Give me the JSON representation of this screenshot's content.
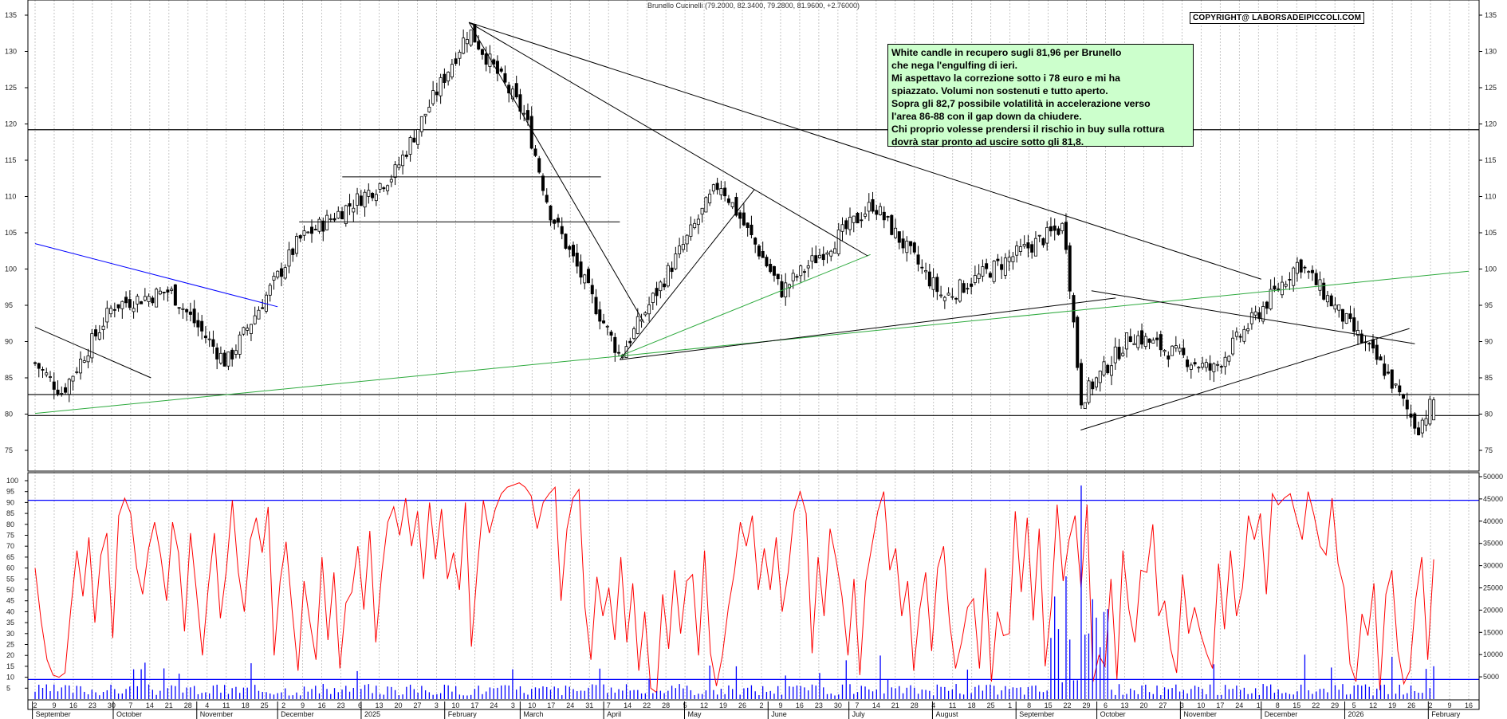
{
  "header": {
    "title": "Brunello Cucinelli (79.2000, 82.3400, 79.2800, 81.9600, +2.76000)"
  },
  "copyright": "COPYRIGHT@ LABORSADEIPICCOLI.COM",
  "comment": {
    "lines": [
      "White candle in recupero sugli 81,96 per Brunello",
      "che nega l'engulfing di ieri.",
      "Mi aspettavo la correzione sotto i 78 euro e mi ha",
      "spiazzato. Volumi non sostenuti e tutto aperto.",
      "Sopra gli 82,7 possibile volatilità in accelerazione verso",
      "l'area 86-88 con il gap down da chiudere.",
      "Chi proprio volesse prendersi il rischio in buy sulla rottura",
      "dovrà  star pronto ad uscire sotto gli 81,8."
    ]
  },
  "colors": {
    "candle": "#000000",
    "rsi_line": "#ff0000",
    "rsi_levels": "#0000ff",
    "volume_bars": "#0000ff",
    "trendline_green": "#2eaa3e",
    "trendline_blue": "#0000ff",
    "comment_bg": "#ccffcc"
  },
  "chart_data": [
    {
      "type": "candlestick",
      "title": "Brunello Cucinelli",
      "ylim": [
        72,
        138
      ],
      "yticks": [
        75,
        80,
        85,
        90,
        95,
        100,
        105,
        110,
        115,
        120,
        125,
        130,
        135
      ],
      "horizontal_levels": [
        119.2,
        82.7,
        79.8
      ],
      "last": {
        "open": 79.2,
        "high": 82.34,
        "low": 79.28,
        "close": 81.96,
        "change": 2.76
      },
      "key_points": [
        {
          "date": "2024-09-02",
          "close": 87
        },
        {
          "date": "2024-09-12",
          "close": 83
        },
        {
          "date": "2024-10-01",
          "close": 95
        },
        {
          "date": "2024-10-22",
          "close": 97
        },
        {
          "date": "2024-11-12",
          "close": 87
        },
        {
          "date": "2024-12-09",
          "close": 104
        },
        {
          "date": "2025-01-13",
          "close": 113
        },
        {
          "date": "2025-02-10",
          "close": 133
        },
        {
          "date": "2025-03-03",
          "close": 121
        },
        {
          "date": "2025-03-12",
          "close": 108
        },
        {
          "date": "2025-04-07",
          "close": 88
        },
        {
          "date": "2025-05-14",
          "close": 112
        },
        {
          "date": "2025-06-06",
          "close": 97
        },
        {
          "date": "2025-07-10",
          "close": 109
        },
        {
          "date": "2025-08-05",
          "close": 96
        },
        {
          "date": "2025-09-19",
          "close": 106
        },
        {
          "date": "2025-09-25",
          "close": 82
        },
        {
          "date": "2025-10-14",
          "close": 91
        },
        {
          "date": "2025-11-13",
          "close": 86
        },
        {
          "date": "2025-12-15",
          "close": 101
        },
        {
          "date": "2026-01-16",
          "close": 86
        },
        {
          "date": "2026-01-28",
          "close": 78
        },
        {
          "date": "2026-02-03",
          "close": 81.96
        }
      ]
    },
    {
      "type": "line",
      "name": "RSI",
      "ylim": [
        0,
        100
      ],
      "yticks": [
        5,
        10,
        15,
        20,
        25,
        30,
        35,
        40,
        45,
        50,
        55,
        60,
        65,
        70,
        75,
        80,
        85,
        90,
        95,
        100
      ],
      "levels": [
        9,
        91
      ],
      "values": [
        60,
        36,
        18,
        11,
        10,
        12,
        42,
        68,
        47,
        74,
        35,
        66,
        76,
        28,
        84,
        92,
        85,
        60,
        48,
        69,
        81,
        66,
        45,
        81,
        67,
        31,
        76,
        49,
        20,
        52,
        76,
        37,
        59,
        91,
        58,
        40,
        73,
        83,
        67,
        88,
        20,
        54,
        72,
        41,
        13,
        54,
        35,
        18,
        65,
        27,
        58,
        14,
        44,
        49,
        70,
        41,
        77,
        26,
        58,
        81,
        88,
        75,
        92,
        70,
        86,
        55,
        90,
        64,
        87,
        55,
        67,
        50,
        90,
        24,
        60,
        91,
        76,
        87,
        94,
        97,
        98,
        99,
        97,
        93,
        78,
        90,
        94,
        97,
        45,
        78,
        92,
        96,
        42,
        18,
        56,
        38,
        51,
        27,
        65,
        26,
        53,
        13,
        40,
        5,
        3,
        48,
        23,
        59,
        30,
        54,
        57,
        20,
        68,
        21,
        6,
        20,
        42,
        58,
        81,
        70,
        84,
        50,
        69,
        50,
        74,
        40,
        58,
        86,
        95,
        85,
        21,
        65,
        38,
        78,
        64,
        47,
        20,
        55,
        11,
        54,
        70,
        86,
        95,
        59,
        69,
        38,
        54,
        13,
        41,
        58,
        22,
        60,
        70,
        35,
        14,
        26,
        42,
        46,
        14,
        60,
        8,
        40,
        29,
        30,
        86,
        49,
        83,
        36,
        78,
        15,
        42,
        89,
        54,
        73,
        84,
        51,
        89,
        8,
        20,
        15,
        55,
        9,
        68,
        41,
        26,
        59,
        58,
        80,
        38,
        45,
        23,
        12,
        57,
        30,
        42,
        30,
        21,
        14,
        62,
        32,
        68,
        38,
        51,
        84,
        73,
        85,
        48,
        94,
        89,
        92,
        94,
        83,
        73,
        95,
        84,
        70,
        66,
        92,
        62,
        51,
        16,
        8,
        39,
        29,
        53,
        4,
        48,
        59,
        22,
        7,
        13,
        46,
        65,
        18,
        64
      ]
    },
    {
      "type": "bar",
      "name": "Volume",
      "ylim": [
        0,
        50000
      ],
      "yticks": [
        5000,
        10000,
        15000,
        20000,
        25000,
        30000,
        35000,
        40000,
        45000,
        50000
      ]
    }
  ],
  "axis": {
    "price_ticks": [
      "75",
      "80",
      "85",
      "90",
      "95",
      "100",
      "105",
      "110",
      "115",
      "120",
      "125",
      "130",
      "135"
    ],
    "rsi_ticks": [
      "5",
      "10",
      "15",
      "20",
      "25",
      "30",
      "35",
      "40",
      "45",
      "50",
      "55",
      "60",
      "65",
      "70",
      "75",
      "80",
      "85",
      "90",
      "95",
      "100"
    ],
    "volume_ticks": [
      "5000",
      "10000",
      "15000",
      "20000",
      "25000",
      "30000",
      "35000",
      "40000",
      "45000",
      "50000"
    ],
    "day_labels": [
      "2",
      "9",
      "16",
      "23",
      "30",
      "7",
      "14",
      "21",
      "28",
      "4",
      "11",
      "18",
      "25",
      "2",
      "9",
      "16",
      "23",
      "6",
      "13",
      "20",
      "27",
      "3",
      "10",
      "17",
      "24",
      "3",
      "10",
      "17",
      "24",
      "31",
      "7",
      "14",
      "22",
      "28",
      "5",
      "12",
      "19",
      "26",
      "2",
      "9",
      "16",
      "23",
      "30",
      "7",
      "14",
      "21",
      "28",
      "4",
      "11",
      "18",
      "25",
      "1",
      "8",
      "15",
      "22",
      "29",
      "6",
      "13",
      "20",
      "27",
      "3",
      "10",
      "17",
      "24",
      "1",
      "8",
      "15",
      "22",
      "29",
      "5",
      "12",
      "19",
      "26",
      "2",
      "9",
      "16"
    ],
    "month_labels": [
      "September",
      "October",
      "November",
      "December",
      "2025",
      "February",
      "March",
      "April",
      "May",
      "June",
      "July",
      "August",
      "September",
      "October",
      "November",
      "December",
      "2026",
      "February"
    ]
  }
}
